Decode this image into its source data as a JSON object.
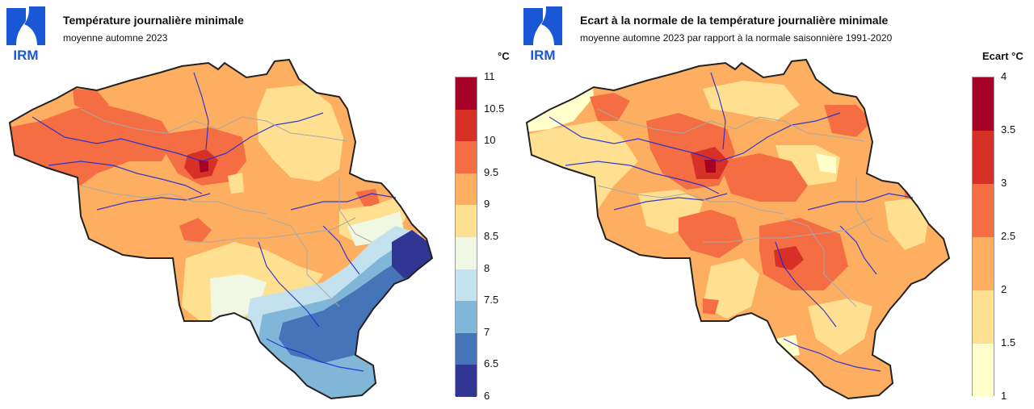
{
  "logo_text": "IRM",
  "left": {
    "title": "Température journalière minimale",
    "subtitle": "moyenne automne 2023",
    "unit": "°C",
    "ticks": [
      "11",
      "10.5",
      "10",
      "9.5",
      "9",
      "8.5",
      "8",
      "7.5",
      "7",
      "6.5",
      "6"
    ],
    "colors": [
      "#a50026",
      "#d73027",
      "#f46d43",
      "#fdae61",
      "#fee090",
      "#f0f7e2",
      "#c3e1ee",
      "#80b6d8",
      "#4574b8",
      "#313695"
    ]
  },
  "right": {
    "title": "Ecart à la normale de la température journalière minimale",
    "subtitle": "moyenne automne 2023 par rapport à la normale saisonnière 1991-2020",
    "unit": "Ecart °C",
    "ticks": [
      "4",
      "3.5",
      "3",
      "2.5",
      "2",
      "1.5",
      "1"
    ],
    "colors": [
      "#a50026",
      "#d73027",
      "#f46d43",
      "#fdae61",
      "#fee090",
      "#ffffcc"
    ]
  }
}
